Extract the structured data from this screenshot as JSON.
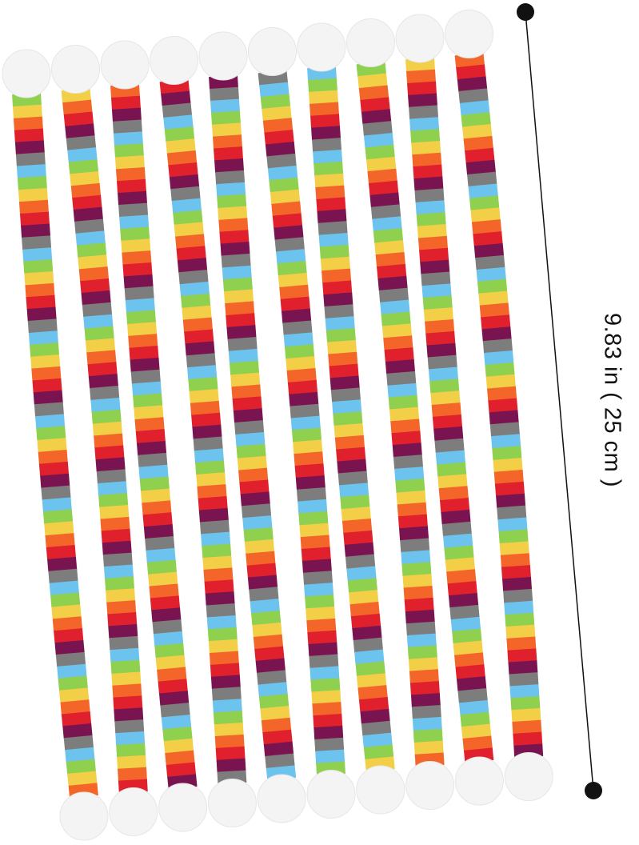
{
  "product": {
    "stripe_colors": [
      "#8fd14f",
      "#f2cf47",
      "#f4652a",
      "#e0202c",
      "#7a1450",
      "#7d7d7d",
      "#6cc3ee"
    ],
    "ball_color": "#f4f4f4"
  },
  "dimension": {
    "label": "9.83 in ( 25 cm )",
    "line_color": "#111111"
  }
}
